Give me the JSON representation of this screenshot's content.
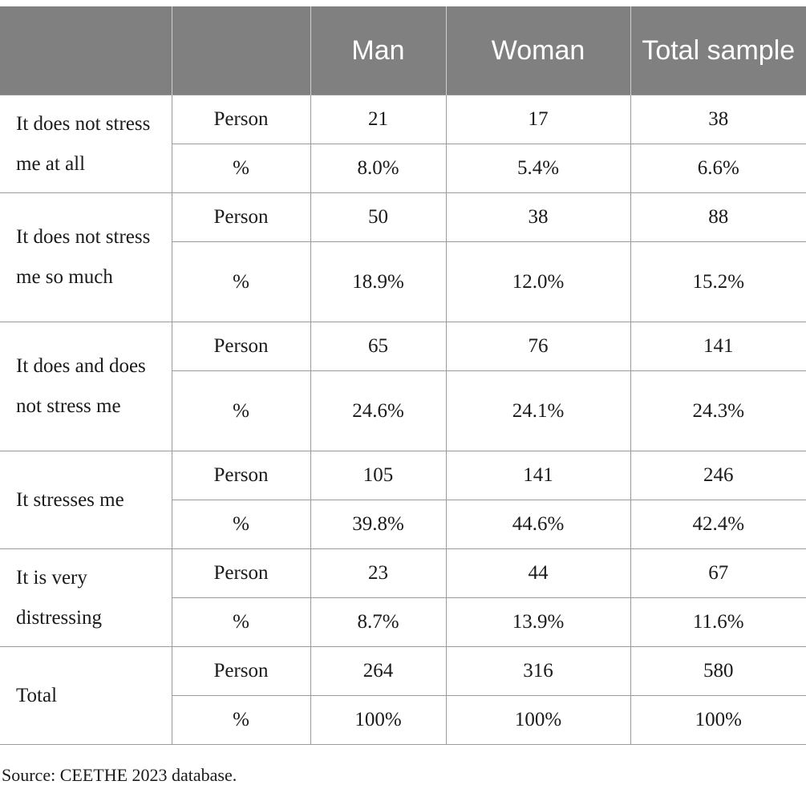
{
  "table": {
    "headers": [
      "",
      "",
      "Man",
      "Woman",
      "Total sample"
    ],
    "rows": [
      {
        "category": "It does not stress me at all",
        "person": {
          "label": "Person",
          "man": "21",
          "woman": "17",
          "total": "38"
        },
        "percent": {
          "label": "%",
          "man": "8.0%",
          "woman": "5.4%",
          "total": "6.6%"
        }
      },
      {
        "category": "It does not stress me so much",
        "person": {
          "label": "Person",
          "man": "50",
          "woman": "38",
          "total": "88"
        },
        "percent": {
          "label": "%",
          "man": "18.9%",
          "woman": "12.0%",
          "total": "15.2%"
        }
      },
      {
        "category": "It does and does not stress me",
        "person": {
          "label": "Person",
          "man": "65",
          "woman": "76",
          "total": "141"
        },
        "percent": {
          "label": "%",
          "man": "24.6%",
          "woman": "24.1%",
          "total": "24.3%"
        }
      },
      {
        "category": "It stresses me",
        "person": {
          "label": "Person",
          "man": "105",
          "woman": "141",
          "total": "246"
        },
        "percent": {
          "label": "%",
          "man": "39.8%",
          "woman": "44.6%",
          "total": "42.4%"
        }
      },
      {
        "category": "It is very distressing",
        "person": {
          "label": "Person",
          "man": "23",
          "woman": "44",
          "total": "67"
        },
        "percent": {
          "label": "%",
          "man": "8.7%",
          "woman": "13.9%",
          "total": "11.6%"
        }
      },
      {
        "category": "Total",
        "person": {
          "label": "Person",
          "man": "264",
          "woman": "316",
          "total": "580"
        },
        "percent": {
          "label": "%",
          "man": "100%",
          "woman": "100%",
          "total": "100%"
        }
      }
    ]
  },
  "source": "Source: CEETHE 2023 database."
}
